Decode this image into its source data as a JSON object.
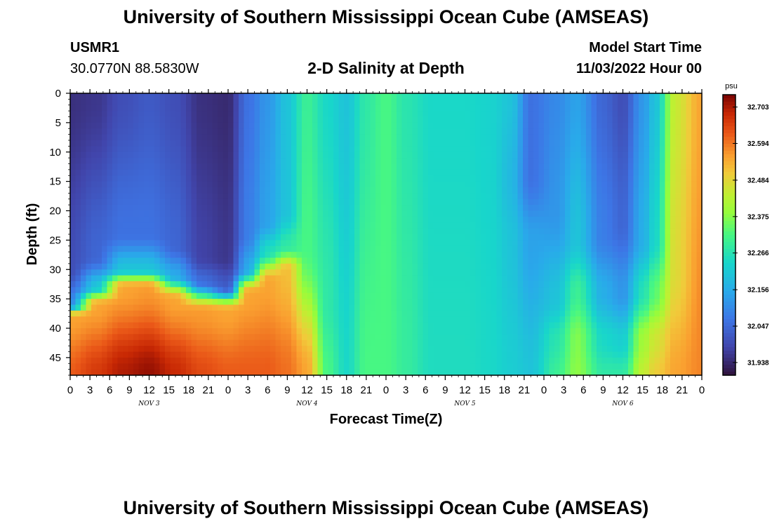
{
  "header": {
    "title": "University of Southern Mississippi Ocean Cube (AMSEAS)",
    "station_id": "USMR1",
    "coordinates": "30.0770N  88.5830W",
    "plot_title": "2-D Salinity at Depth",
    "model_start_label": "Model Start Time",
    "model_start_value": "11/03/2022 Hour 00"
  },
  "footer": {
    "title": "University of Southern Mississippi Ocean Cube (AMSEAS)"
  },
  "chart_data": {
    "type": "heatmap",
    "title": "2-D Salinity at Depth",
    "xlabel": "Forecast Time(Z)",
    "ylabel": "Depth (ft)",
    "ylim": [
      0,
      48
    ],
    "y_ticks": [
      0,
      5,
      10,
      15,
      20,
      25,
      30,
      35,
      40,
      45
    ],
    "x_hours_range": [
      0,
      96
    ],
    "x_tick_labels": [
      "0",
      "3",
      "6",
      "9",
      "12",
      "15",
      "18",
      "21",
      "0",
      "3",
      "6",
      "9",
      "12",
      "15",
      "18",
      "21",
      "0",
      "3",
      "6",
      "9",
      "12",
      "15",
      "18",
      "21",
      "0",
      "3",
      "6",
      "9",
      "12",
      "15",
      "18",
      "21",
      "0"
    ],
    "day_labels": [
      {
        "label": "NOV 3",
        "hour": 12
      },
      {
        "label": "NOV 4",
        "hour": 36
      },
      {
        "label": "NOV 5",
        "hour": 60
      },
      {
        "label": "NOV 6",
        "hour": 84
      }
    ],
    "colorbar": {
      "unit": "psu",
      "min": 31.9,
      "max": 32.74,
      "ticks": [
        32.703,
        32.594,
        32.484,
        32.375,
        32.266,
        32.156,
        32.047,
        31.938
      ]
    },
    "columns": [
      {
        "hour": 0,
        "profile": [
          [
            0,
            31.95
          ],
          [
            30,
            32.0
          ],
          [
            36,
            32.1
          ],
          [
            38,
            32.55
          ],
          [
            48,
            32.62
          ]
        ]
      },
      {
        "hour": 4,
        "profile": [
          [
            0,
            31.96
          ],
          [
            28,
            32.04
          ],
          [
            33,
            32.2
          ],
          [
            36,
            32.55
          ],
          [
            48,
            32.66
          ]
        ]
      },
      {
        "hour": 8,
        "profile": [
          [
            0,
            32.0
          ],
          [
            24,
            32.06
          ],
          [
            30,
            32.2
          ],
          [
            33,
            32.55
          ],
          [
            48,
            32.7
          ]
        ]
      },
      {
        "hour": 12,
        "profile": [
          [
            0,
            32.02
          ],
          [
            24,
            32.06
          ],
          [
            30,
            32.2
          ],
          [
            33,
            32.56
          ],
          [
            48,
            32.72
          ]
        ]
      },
      {
        "hour": 16,
        "profile": [
          [
            0,
            32.0
          ],
          [
            26,
            32.04
          ],
          [
            31,
            32.15
          ],
          [
            35,
            32.55
          ],
          [
            48,
            32.68
          ]
        ]
      },
      {
        "hour": 20,
        "profile": [
          [
            0,
            31.95
          ],
          [
            28,
            31.98
          ],
          [
            32,
            32.05
          ],
          [
            37,
            32.56
          ],
          [
            48,
            32.64
          ]
        ]
      },
      {
        "hour": 24,
        "profile": [
          [
            0,
            31.94
          ],
          [
            28,
            31.96
          ],
          [
            33,
            32.02
          ],
          [
            37,
            32.55
          ],
          [
            48,
            32.62
          ]
        ]
      },
      {
        "hour": 27,
        "profile": [
          [
            0,
            32.06
          ],
          [
            24,
            32.08
          ],
          [
            30,
            32.15
          ],
          [
            34,
            32.55
          ],
          [
            48,
            32.62
          ]
        ]
      },
      {
        "hour": 30,
        "profile": [
          [
            0,
            32.12
          ],
          [
            22,
            32.14
          ],
          [
            27,
            32.25
          ],
          [
            32,
            32.55
          ],
          [
            48,
            32.62
          ]
        ]
      },
      {
        "hour": 33,
        "profile": [
          [
            0,
            32.2
          ],
          [
            20,
            32.2
          ],
          [
            26,
            32.28
          ],
          [
            30,
            32.52
          ],
          [
            48,
            32.6
          ]
        ]
      },
      {
        "hour": 36,
        "profile": [
          [
            0,
            32.3
          ],
          [
            26,
            32.32
          ],
          [
            48,
            32.55
          ]
        ]
      },
      {
        "hour": 39,
        "profile": [
          [
            0,
            32.24
          ],
          [
            36,
            32.28
          ],
          [
            48,
            32.32
          ]
        ]
      },
      {
        "hour": 42,
        "profile": [
          [
            0,
            32.2
          ],
          [
            48,
            32.24
          ]
        ]
      },
      {
        "hour": 45,
        "profile": [
          [
            0,
            32.28
          ],
          [
            48,
            32.32
          ]
        ]
      },
      {
        "hour": 48,
        "profile": [
          [
            0,
            32.32
          ],
          [
            48,
            32.32
          ]
        ]
      },
      {
        "hour": 51,
        "profile": [
          [
            0,
            32.27
          ],
          [
            48,
            32.29
          ]
        ]
      },
      {
        "hour": 55,
        "profile": [
          [
            0,
            32.24
          ],
          [
            48,
            32.25
          ]
        ]
      },
      {
        "hour": 60,
        "profile": [
          [
            0,
            32.24
          ],
          [
            48,
            32.25
          ]
        ]
      },
      {
        "hour": 64,
        "profile": [
          [
            0,
            32.23
          ],
          [
            48,
            32.24
          ]
        ]
      },
      {
        "hour": 67,
        "profile": [
          [
            0,
            32.2
          ],
          [
            15,
            32.18
          ],
          [
            25,
            32.2
          ],
          [
            48,
            32.22
          ]
        ]
      },
      {
        "hour": 70,
        "profile": [
          [
            0,
            32.06
          ],
          [
            14,
            32.06
          ],
          [
            25,
            32.14
          ],
          [
            48,
            32.2
          ]
        ]
      },
      {
        "hour": 74,
        "profile": [
          [
            0,
            32.1
          ],
          [
            20,
            32.12
          ],
          [
            35,
            32.2
          ],
          [
            42,
            32.27
          ],
          [
            48,
            32.3
          ]
        ]
      },
      {
        "hour": 77,
        "profile": [
          [
            0,
            32.14
          ],
          [
            25,
            32.2
          ],
          [
            34,
            32.3
          ],
          [
            42,
            32.37
          ],
          [
            48,
            32.38
          ]
        ]
      },
      {
        "hour": 81,
        "profile": [
          [
            0,
            32.04
          ],
          [
            24,
            32.08
          ],
          [
            34,
            32.16
          ],
          [
            42,
            32.24
          ],
          [
            48,
            32.28
          ]
        ]
      },
      {
        "hour": 84,
        "profile": [
          [
            0,
            32.0
          ],
          [
            22,
            32.04
          ],
          [
            34,
            32.12
          ],
          [
            42,
            32.22
          ],
          [
            48,
            32.28
          ]
        ]
      },
      {
        "hour": 87,
        "profile": [
          [
            0,
            32.12
          ],
          [
            25,
            32.16
          ],
          [
            34,
            32.26
          ],
          [
            42,
            32.4
          ],
          [
            48,
            32.44
          ]
        ]
      },
      {
        "hour": 89,
        "profile": [
          [
            0,
            32.2
          ],
          [
            25,
            32.24
          ],
          [
            34,
            32.34
          ],
          [
            42,
            32.46
          ],
          [
            48,
            32.5
          ]
        ]
      },
      {
        "hour": 92,
        "profile": [
          [
            0,
            32.45
          ],
          [
            30,
            32.48
          ],
          [
            48,
            32.55
          ]
        ]
      },
      {
        "hour": 96,
        "profile": [
          [
            0,
            32.55
          ],
          [
            48,
            32.58
          ]
        ]
      }
    ]
  }
}
